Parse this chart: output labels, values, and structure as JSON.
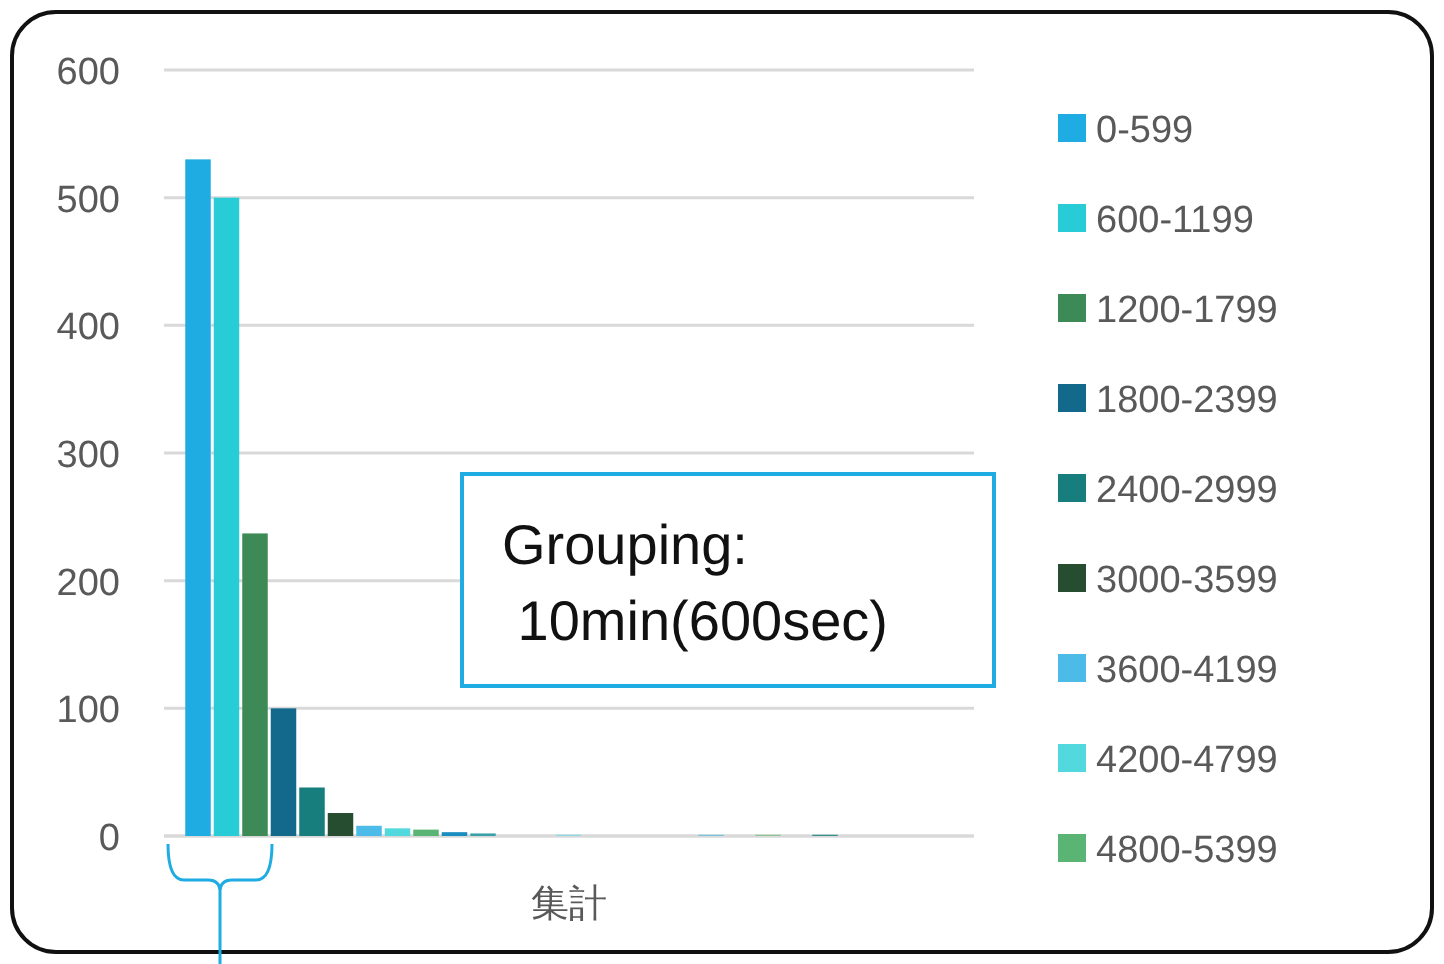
{
  "chart_data": {
    "type": "bar",
    "categories": [
      "集計"
    ],
    "ylim": [
      0,
      600
    ],
    "yticks": [
      0,
      100,
      200,
      300,
      400,
      500,
      600
    ],
    "grid": "y",
    "legend": "right",
    "annotations": [
      "Grouping:\n 10min(600sec)"
    ],
    "series": [
      {
        "name": "0-599",
        "color": "#1eace2",
        "values": [
          530
        ]
      },
      {
        "name": "600-1199",
        "color": "#28ccd6",
        "values": [
          500
        ]
      },
      {
        "name": "1200-1799",
        "color": "#3d8a56",
        "values": [
          237
        ]
      },
      {
        "name": "1800-2399",
        "color": "#12698c",
        "values": [
          100
        ]
      },
      {
        "name": "2400-2999",
        "color": "#177d7d",
        "values": [
          38
        ]
      },
      {
        "name": "3000-3599",
        "color": "#264d30",
        "values": [
          18
        ]
      },
      {
        "name": "3600-4199",
        "color": "#4dbbe8",
        "values": [
          8
        ]
      },
      {
        "name": "4200-4799",
        "color": "#52d9dd",
        "values": [
          6
        ]
      },
      {
        "name": "4800-5399",
        "color": "#5ab574",
        "values": [
          5
        ]
      },
      {
        "color": "#1a8dc0",
        "values": [
          3
        ]
      },
      {
        "color": "#3aa0a8",
        "values": [
          2
        ]
      },
      {
        "color": "#3d8a56",
        "values": [
          0
        ]
      },
      {
        "color": "#12698c",
        "values": [
          0
        ]
      },
      {
        "color": "#8fd8e6",
        "values": [
          1
        ]
      },
      {
        "color": "#264d30",
        "values": [
          0
        ]
      },
      {
        "color": "#4dbbe8",
        "values": [
          0
        ]
      },
      {
        "color": "#52d9dd",
        "values": [
          0
        ]
      },
      {
        "color": "#5ab574",
        "values": [
          0
        ]
      },
      {
        "color": "#7cc4de",
        "values": [
          1
        ]
      },
      {
        "color": "#3aa0a8",
        "values": [
          0
        ]
      },
      {
        "color": "#8cc79a",
        "values": [
          1
        ]
      },
      {
        "color": "#12698c",
        "values": [
          0
        ]
      },
      {
        "color": "#3a8f8f",
        "values": [
          1
        ]
      },
      {
        "color": "#264d30",
        "values": [
          0
        ]
      },
      {
        "color": "#4dbbe8",
        "values": [
          0
        ]
      },
      {
        "color": "#52d9dd",
        "values": [
          0
        ]
      },
      {
        "color": "#5ab574",
        "values": [
          0
        ]
      }
    ]
  }
}
